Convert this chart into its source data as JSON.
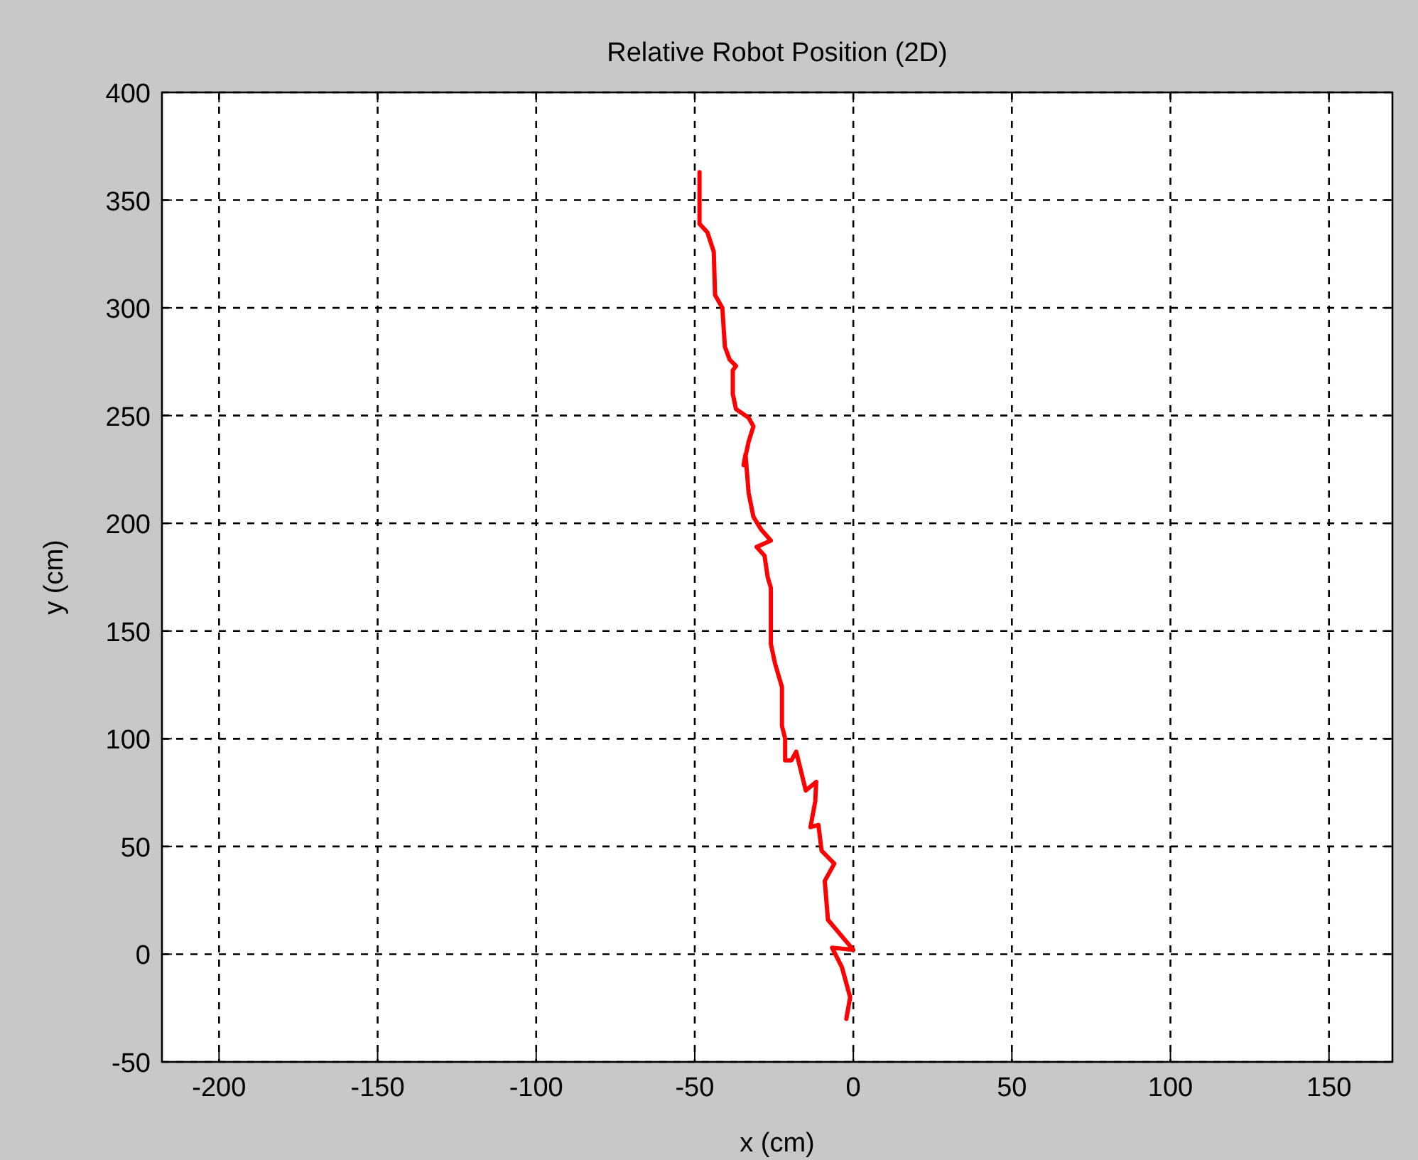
{
  "chart_data": {
    "type": "line",
    "title": "Relative Robot Position (2D)",
    "xlabel": "x (cm)",
    "ylabel": "y (cm)",
    "xlim": [
      -218,
      170
    ],
    "ylim": [
      -50,
      400
    ],
    "xticks": [
      -200,
      -150,
      -100,
      -50,
      0,
      50,
      100,
      150
    ],
    "yticks": [
      -50,
      0,
      50,
      100,
      150,
      200,
      250,
      300,
      350,
      400
    ],
    "grid": true,
    "marker": "none",
    "line_style": "solid",
    "series": [
      {
        "color": "#ff0000",
        "x": [
          -2.2,
          -1,
          -3.6,
          -6.7,
          0,
          -8,
          -9,
          -6,
          -10,
          -11,
          -13.5,
          -12,
          -11.7,
          -15,
          -17,
          -18,
          -19.5,
          -21.5,
          -21.5,
          -22.5,
          -22.5,
          -24.7,
          -26,
          -26,
          -27,
          -28,
          -30.5,
          -26,
          -29,
          -31.5,
          -33,
          -34,
          -34.6,
          -33,
          -31.5,
          -33,
          -37,
          -38,
          -38,
          -37,
          -39,
          -40.5,
          -41.3,
          -43.6,
          -44,
          -46,
          -48.5,
          -48.5
        ],
        "values": [
          -30,
          -20,
          -6,
          3,
          2,
          16,
          34,
          42,
          48,
          60,
          59,
          71,
          80,
          76,
          88,
          94,
          90,
          90,
          100,
          106,
          124,
          135,
          144,
          170,
          175,
          185,
          189,
          192,
          197,
          203,
          214,
          232,
          227,
          238,
          245,
          249,
          253,
          260,
          271,
          273,
          276,
          282,
          300,
          306,
          326,
          335,
          339,
          363
        ]
      }
    ]
  }
}
